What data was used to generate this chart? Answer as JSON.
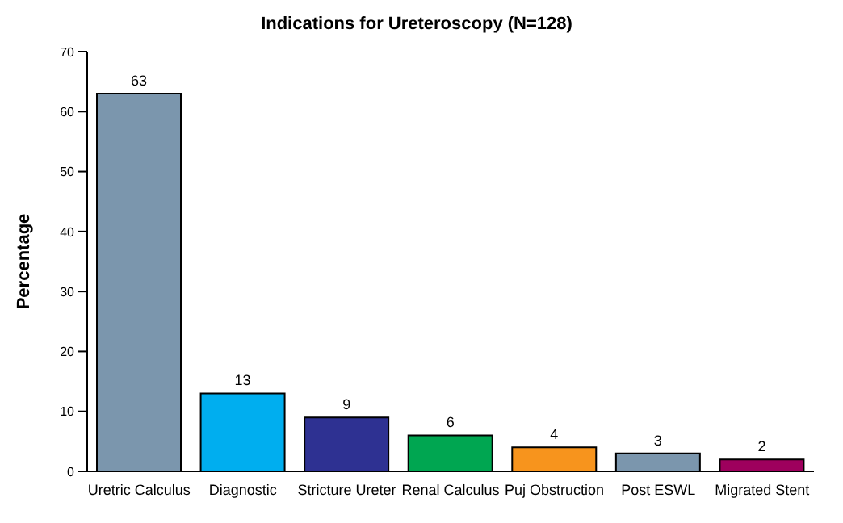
{
  "chart_data": {
    "type": "bar",
    "title": "Indications for Ureteroscopy (N=128)",
    "ylabel": "Percentage",
    "categories": [
      "Uretric Calculus",
      "Diagnostic",
      "Stricture Ureter",
      "Renal Calculus",
      "Puj Obstruction",
      "Post ESWL",
      "Migrated Stent"
    ],
    "values": [
      63,
      13,
      9,
      6,
      4,
      3,
      2
    ],
    "colors": [
      "#7b96ad",
      "#00aeef",
      "#2e3192",
      "#00a651",
      "#f7941d",
      "#7b96ad",
      "#9e005d"
    ],
    "ylim": [
      0,
      70
    ],
    "yticks": [
      0,
      10,
      20,
      30,
      40,
      50,
      60,
      70
    ],
    "data_labels": true,
    "grid": false
  }
}
